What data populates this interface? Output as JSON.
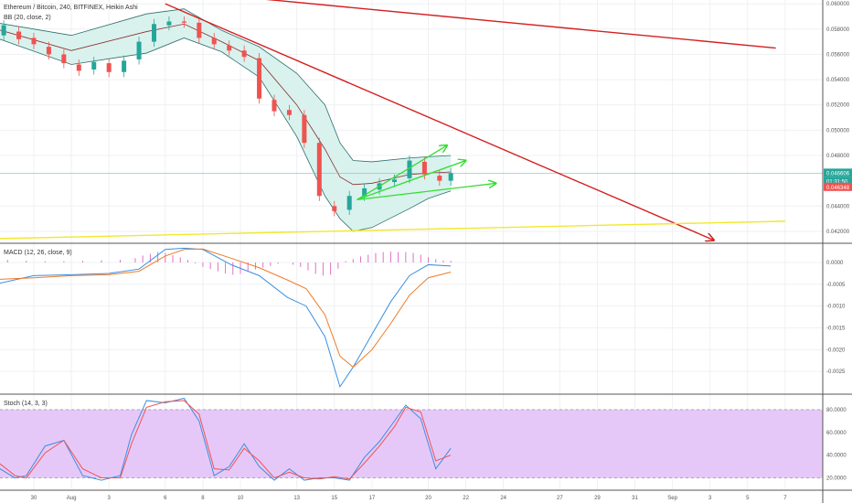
{
  "colors": {
    "bull": "#26a69a",
    "bear": "#ef5350",
    "bb_fill": "#d9f2ee",
    "bb_line": "#2f6f6a",
    "bb_basis": "#8b2d2d",
    "trend_red": "#d42020",
    "trend_yellow": "#f2e82e",
    "arrow_green": "#33dd33",
    "macd": "#3b8fe0",
    "signal": "#f07b29",
    "hist": "#e070c8",
    "stoch_k": "#3b8fe0",
    "stoch_d": "#ef5350",
    "stoch_band": "#e6c8f8"
  },
  "chart_data": [
    {
      "type": "candlestick",
      "title": "Ethereum / Bitcoin, 240, BITFINEX, Heikin Ashi",
      "indicator": "BB (20, close, 2)",
      "ylim": [
        0.0412,
        0.0603
      ],
      "y_ticks": [
        "0.060000",
        "0.058000",
        "0.056000",
        "0.054000",
        "0.052000",
        "0.050000",
        "0.048000",
        "0.044000",
        "0.042000"
      ],
      "price_badges": [
        {
          "value": "0.046606",
          "color": "#26a69a"
        },
        {
          "value": "01:31:50",
          "color": "#26a69a"
        },
        {
          "value": "0.046348",
          "color": "#ef5350"
        }
      ],
      "current_price": 0.0466,
      "candles": [
        {
          "d": 28.4,
          "o": 0.0575,
          "c": 0.0583
        },
        {
          "d": 29.2,
          "o": 0.0578,
          "c": 0.0572
        },
        {
          "d": 30.0,
          "o": 0.0573,
          "c": 0.0568
        },
        {
          "d": 30.8,
          "o": 0.0566,
          "c": 0.056
        },
        {
          "d": 31.6,
          "o": 0.056,
          "c": 0.0553
        },
        {
          "d": 32.4,
          "o": 0.0552,
          "c": 0.0547
        },
        {
          "d": 33.2,
          "o": 0.0548,
          "c": 0.0554
        },
        {
          "d": 34.0,
          "o": 0.0553,
          "c": 0.0546
        },
        {
          "d": 34.8,
          "o": 0.0546,
          "c": 0.0555
        },
        {
          "d": 35.6,
          "o": 0.0556,
          "c": 0.057
        },
        {
          "d": 36.4,
          "o": 0.057,
          "c": 0.0584
        },
        {
          "d": 37.2,
          "o": 0.0583,
          "c": 0.0586
        },
        {
          "d": 38.0,
          "o": 0.0586,
          "c": 0.0585
        },
        {
          "d": 38.8,
          "o": 0.0585,
          "c": 0.0573
        },
        {
          "d": 39.6,
          "o": 0.0573,
          "c": 0.0568
        },
        {
          "d": 40.4,
          "o": 0.0567,
          "c": 0.0563
        },
        {
          "d": 41.2,
          "o": 0.0563,
          "c": 0.0558
        },
        {
          "d": 42.0,
          "o": 0.0557,
          "c": 0.0525
        },
        {
          "d": 42.8,
          "o": 0.0524,
          "c": 0.0515
        },
        {
          "d": 43.6,
          "o": 0.0516,
          "c": 0.0512
        },
        {
          "d": 44.4,
          "o": 0.0512,
          "c": 0.049
        },
        {
          "d": 45.2,
          "o": 0.049,
          "c": 0.0448
        },
        {
          "d": 46.0,
          "o": 0.044,
          "c": 0.0436
        },
        {
          "d": 46.8,
          "o": 0.0437,
          "c": 0.0448
        },
        {
          "d": 47.6,
          "o": 0.0448,
          "c": 0.0454
        },
        {
          "d": 48.4,
          "o": 0.0453,
          "c": 0.0458
        },
        {
          "d": 49.2,
          "o": 0.0459,
          "c": 0.0461
        },
        {
          "d": 50.0,
          "o": 0.0462,
          "c": 0.0476
        },
        {
          "d": 50.8,
          "o": 0.0475,
          "c": 0.0465
        },
        {
          "d": 51.6,
          "o": 0.0464,
          "c": 0.046
        },
        {
          "d": 52.2,
          "o": 0.046,
          "c": 0.0466
        }
      ],
      "bollinger": {
        "d": [
          28,
          32,
          36,
          38,
          40,
          42,
          44,
          45.5,
          46.3,
          47,
          48,
          50,
          51,
          52.2
        ],
        "upper": [
          0.0585,
          0.0575,
          0.0592,
          0.0596,
          0.0579,
          0.0566,
          0.0545,
          0.052,
          0.049,
          0.0476,
          0.0475,
          0.0478,
          0.0479,
          0.048
        ],
        "basis": [
          0.058,
          0.0563,
          0.0578,
          0.0584,
          0.057,
          0.0555,
          0.052,
          0.0485,
          0.0463,
          0.0457,
          0.0458,
          0.0465,
          0.0466,
          0.0467
        ],
        "lower": [
          0.0573,
          0.0552,
          0.0561,
          0.0573,
          0.0562,
          0.0542,
          0.0495,
          0.0448,
          0.043,
          0.042,
          0.0423,
          0.0438,
          0.0446,
          0.0452
        ]
      },
      "trendlines": [
        {
          "name": "red-upper",
          "color": "trend_red",
          "d1": 42.0,
          "p1": 0.0604,
          "d2": 69.5,
          "p2": 0.0565,
          "arrow": false
        },
        {
          "name": "red-down",
          "color": "trend_red",
          "d1": 37.0,
          "p1": 0.06,
          "d2": 66.2,
          "p2": 0.0413,
          "arrow": true
        },
        {
          "name": "yellow-support",
          "color": "trend_yellow",
          "d1": 27.4,
          "p1": 0.0414,
          "d2": 70.0,
          "p2": 0.0428,
          "arrow": false
        }
      ],
      "arrows": [
        {
          "d1": 47.2,
          "p1": 0.0445,
          "d2": 52.0,
          "p2": 0.0488
        },
        {
          "d1": 47.2,
          "p1": 0.0445,
          "d2": 53.0,
          "p2": 0.0476
        },
        {
          "d1": 47.2,
          "p1": 0.0445,
          "d2": 54.6,
          "p2": 0.0458
        }
      ]
    },
    {
      "type": "line",
      "title": "MACD (12, 26, close, 9)",
      "ylim": [
        -0.003,
        0.0004
      ],
      "y_ticks": [
        "0.0000",
        "-0.0005",
        "-0.0010",
        "-0.0015",
        "-0.0020",
        "-0.0025"
      ],
      "series": [
        {
          "name": "MACD",
          "d": [
            27.4,
            30,
            32,
            34,
            35.6,
            37,
            38,
            39,
            40.5,
            42,
            43.5,
            44.5,
            45.5,
            46.3,
            47,
            48,
            49,
            50,
            51,
            52.2
          ],
          "values": [
            -0.00055,
            -0.0003,
            -0.00028,
            -0.00025,
            -0.00015,
            0.0003,
            0.00033,
            0.0003,
            -5e-05,
            -0.0003,
            -0.0008,
            -0.001,
            -0.0017,
            -0.00285,
            -0.0024,
            -0.00165,
            -0.0009,
            -0.0003,
            -5e-05,
            -8e-05
          ]
        },
        {
          "name": "Signal",
          "d": [
            27.4,
            30,
            32,
            34,
            35.6,
            37,
            38,
            39,
            40.5,
            42,
            43.5,
            44.5,
            45.5,
            46.3,
            47,
            48,
            49,
            50,
            51,
            52.2
          ],
          "values": [
            -0.0004,
            -0.00035,
            -0.0003,
            -0.00028,
            -0.0002,
            0.00015,
            0.0003,
            0.00031,
            0.0001,
            -0.00012,
            -0.0004,
            -0.0006,
            -0.0012,
            -0.00215,
            -0.0024,
            -0.002,
            -0.0014,
            -0.00075,
            -0.00035,
            -0.00022
          ]
        }
      ],
      "histogram": {
        "d": [
          27.6,
          28.6,
          29.6,
          30.6,
          31.6,
          32.6,
          33.6,
          34.6,
          35.4,
          35.8,
          36.2,
          36.6,
          37.0,
          37.4,
          37.8,
          38.2,
          38.6,
          39.0,
          39.4,
          39.8,
          40.2,
          40.6,
          41.0,
          41.4,
          41.8,
          42.2,
          42.6,
          43.0,
          43.4,
          43.8,
          44.2,
          44.6,
          45.0,
          45.4,
          45.8,
          46.2,
          46.6,
          47.0,
          47.4,
          47.8,
          48.2,
          48.6,
          49.0,
          49.4,
          49.8,
          50.2,
          50.6,
          51.0,
          51.4,
          51.8,
          52.2
        ],
        "values": [
          8e-05,
          6e-05,
          4e-05,
          3e-05,
          3e-05,
          4e-05,
          5e-05,
          6e-05,
          0.0001,
          0.00016,
          0.0002,
          0.00024,
          0.00022,
          0.00017,
          0.00012,
          6e-05,
          -2e-05,
          -0.0001,
          -0.00015,
          -0.0002,
          -0.00025,
          -0.00028,
          -0.00026,
          -0.0002,
          -0.00016,
          -0.00012,
          -8e-05,
          -3e-05,
          0.0,
          -5e-05,
          -0.0001,
          -0.00018,
          -0.00026,
          -0.0003,
          -0.00028,
          -0.00014,
          3e-05,
          8e-05,
          0.00014,
          0.00018,
          0.00022,
          0.00024,
          0.00025,
          0.00024,
          0.00024,
          0.00022,
          0.00018,
          0.00012,
          8e-05,
          5e-05,
          4e-05
        ]
      }
    },
    {
      "type": "line",
      "title": "Stoch (14, 3, 3)",
      "ylim": [
        10,
        92
      ],
      "y_ticks": [
        "80.0000",
        "60.0000",
        "40.0000",
        "20.0000"
      ],
      "band": [
        20,
        80
      ],
      "series": [
        {
          "name": "%K",
          "d": [
            27.4,
            28,
            29,
            29.6,
            30.6,
            31.6,
            32.6,
            33.6,
            34.6,
            35.2,
            36.0,
            37.0,
            38.0,
            38.8,
            39.6,
            40.4,
            41.2,
            42.0,
            42.8,
            43.6,
            44.4,
            45.2,
            46.0,
            46.8,
            47.6,
            48.4,
            49.2,
            49.8,
            50.6,
            51.4,
            52.2
          ],
          "values": [
            55,
            30,
            20,
            22,
            48,
            53,
            22,
            18,
            22,
            58,
            88,
            86,
            90,
            70,
            22,
            30,
            50,
            30,
            18,
            28,
            18,
            20,
            20,
            18,
            38,
            52,
            70,
            84,
            72,
            28,
            46
          ]
        },
        {
          "name": "%D",
          "d": [
            27.4,
            28,
            29,
            29.6,
            30.6,
            31.6,
            32.6,
            33.6,
            34.6,
            35.2,
            36.0,
            37.0,
            38.0,
            38.8,
            39.6,
            40.4,
            41.2,
            42.0,
            42.8,
            43.6,
            44.4,
            45.2,
            46.0,
            46.8,
            47.6,
            48.4,
            49.2,
            49.8,
            50.6,
            51.4,
            52.2
          ],
          "values": [
            58,
            35,
            22,
            20,
            42,
            53,
            28,
            20,
            20,
            50,
            82,
            87,
            88,
            76,
            28,
            27,
            46,
            35,
            20,
            25,
            20,
            19,
            21,
            19,
            33,
            48,
            65,
            82,
            78,
            35,
            40
          ]
        }
      ]
    }
  ],
  "x_axis": {
    "ticks": [
      {
        "d": 30,
        "label": "30"
      },
      {
        "d": 32,
        "label": "Aug"
      },
      {
        "d": 34,
        "label": "3"
      },
      {
        "d": 37,
        "label": "6"
      },
      {
        "d": 39,
        "label": "8"
      },
      {
        "d": 41,
        "label": "10"
      },
      {
        "d": 44,
        "label": "13"
      },
      {
        "d": 46,
        "label": "15"
      },
      {
        "d": 48,
        "label": "17"
      },
      {
        "d": 51,
        "label": "20"
      },
      {
        "d": 53,
        "label": "22"
      },
      {
        "d": 55,
        "label": "24"
      },
      {
        "d": 58,
        "label": "27"
      },
      {
        "d": 60,
        "label": "29"
      },
      {
        "d": 62,
        "label": "31"
      },
      {
        "d": 64,
        "label": "Sep"
      },
      {
        "d": 66,
        "label": "3"
      },
      {
        "d": 68,
        "label": "5"
      },
      {
        "d": 70,
        "label": "7"
      }
    ],
    "range": [
      28.2,
      72.0
    ]
  },
  "labels": {
    "title": "Ethereum / Bitcoin, 240, BITFINEX, Heikin Ashi",
    "bb": "BB (20, close, 2)",
    "macd": "MACD (12, 26, close, 9)",
    "stoch": "Stoch (14, 3, 3)"
  }
}
